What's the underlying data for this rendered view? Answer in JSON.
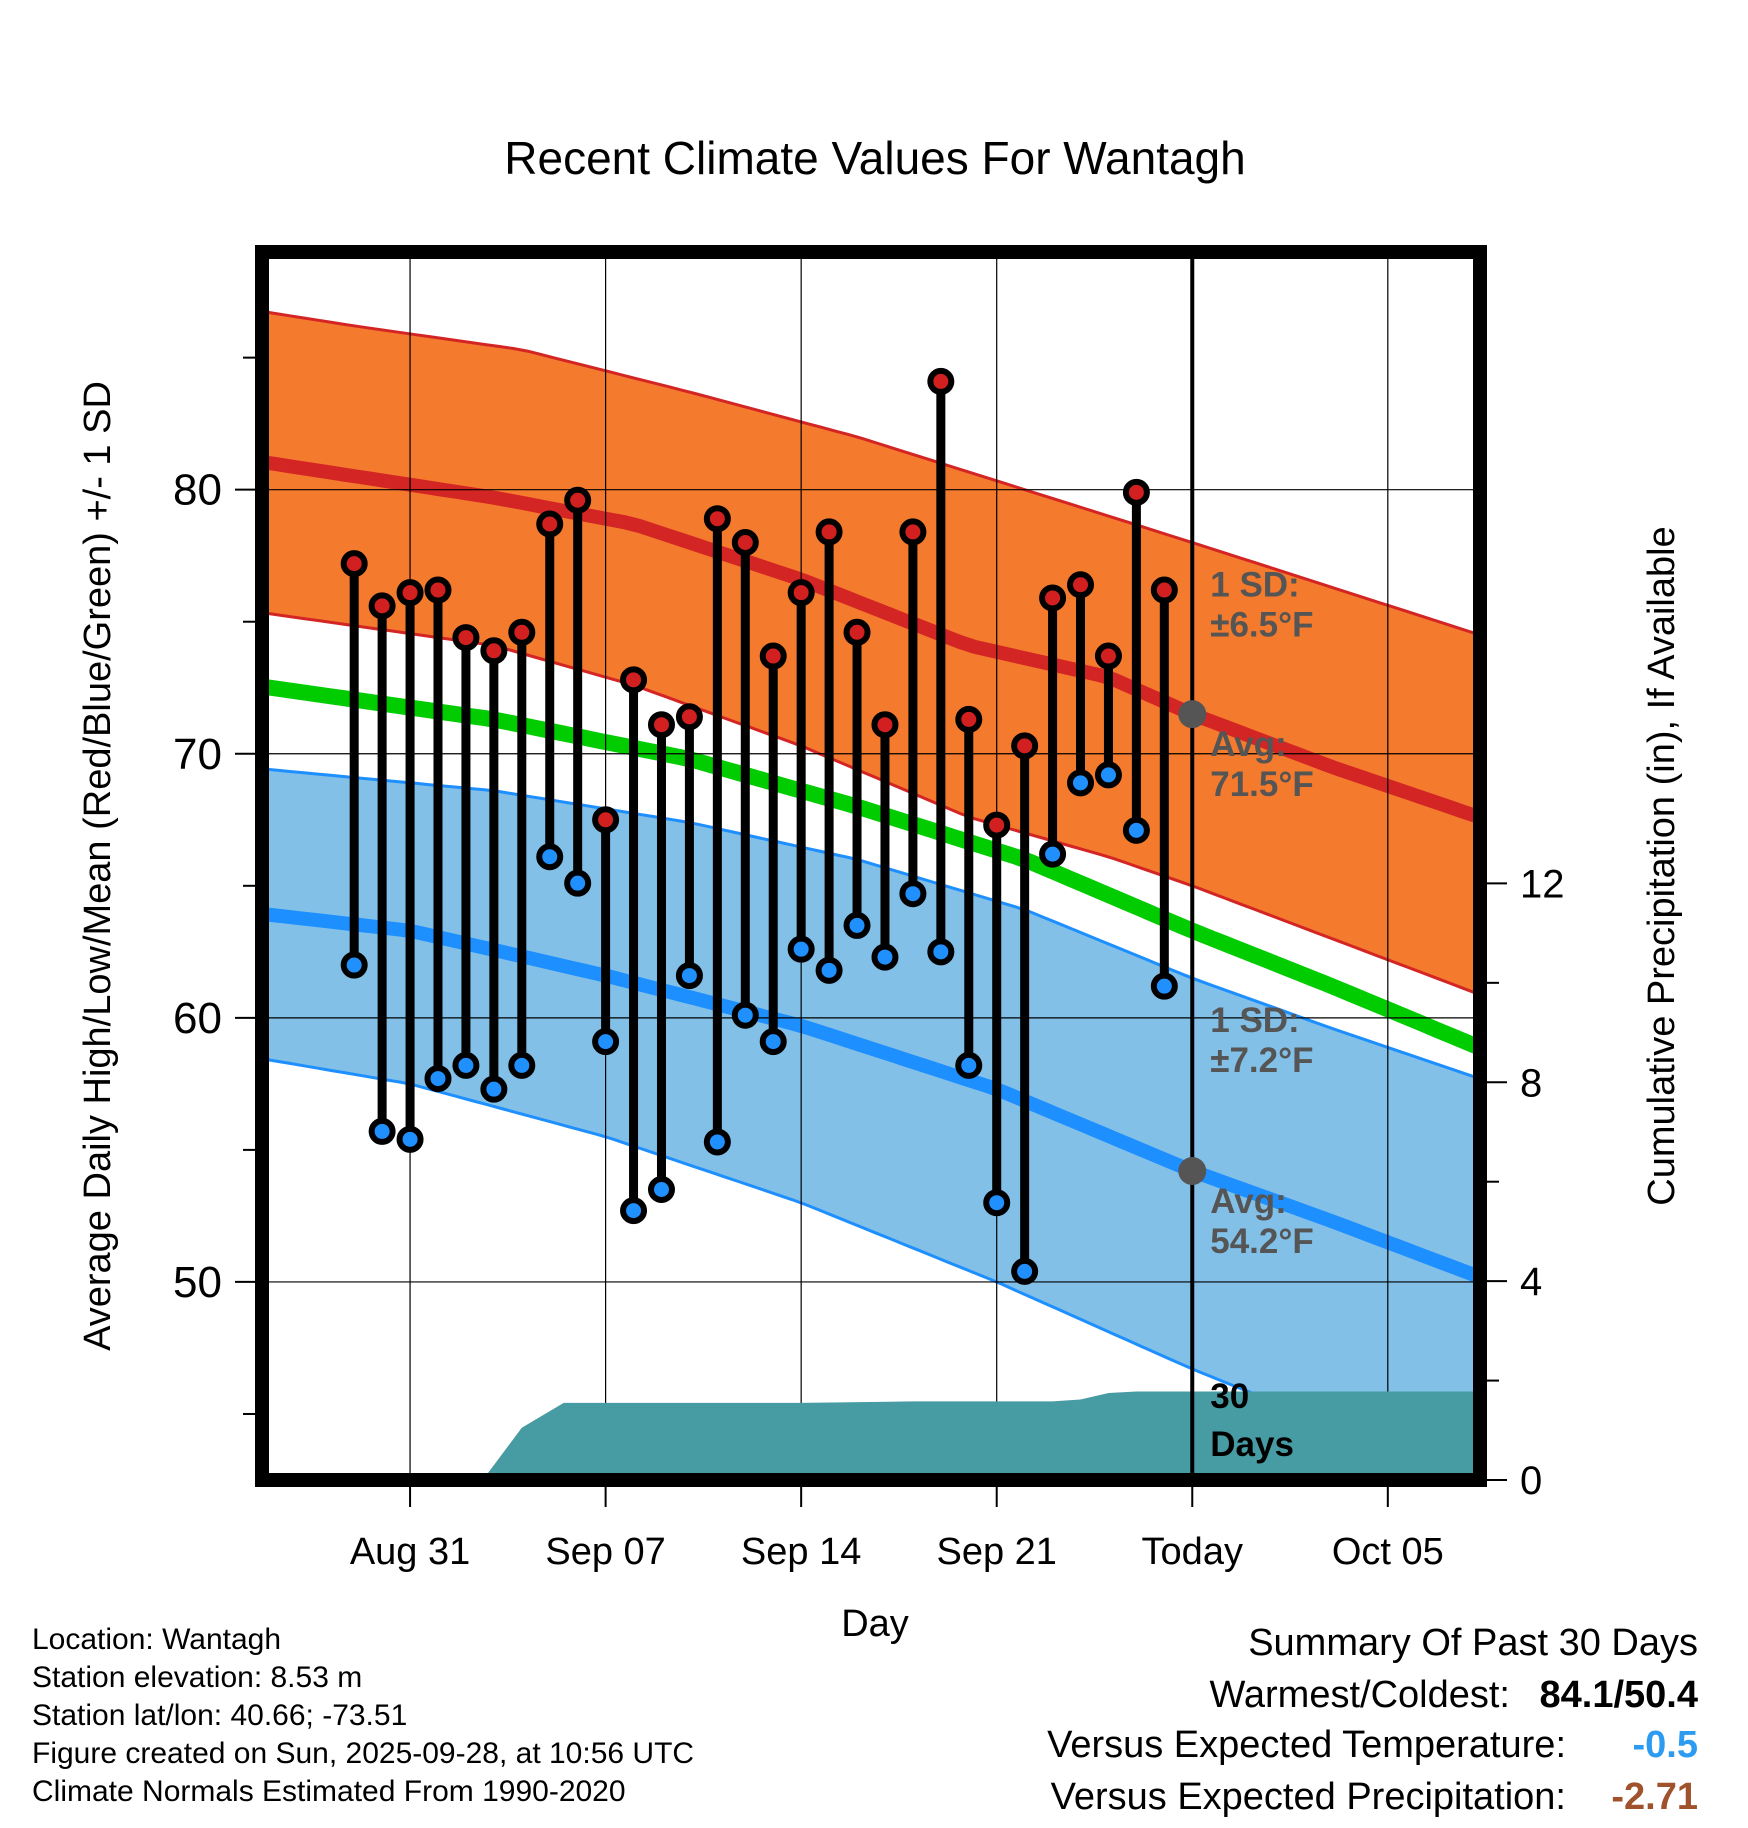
{
  "chart_data": {
    "type": "line",
    "title": "Recent Climate Values For Wantagh",
    "xlabel": "Day",
    "ylabel_left": "Average Daily High/Low/Mean (Red/Blue/Green) +/- 1 SD",
    "ylabel_right": "Cumulative Precipitation (in), If Available",
    "ylim_left": [
      42.5,
      89
    ],
    "ylim_right": [
      0,
      24.7
    ],
    "y_ticks_left": [
      50,
      60,
      70,
      80
    ],
    "y_ticks_right": [
      0,
      4,
      8,
      12
    ],
    "x_range_days": [
      -33.3,
      10.3
    ],
    "x_ticks": [
      {
        "day": -28,
        "label": "Aug 31"
      },
      {
        "day": -21,
        "label": "Sep 07"
      },
      {
        "day": -14,
        "label": "Sep 14"
      },
      {
        "day": -7,
        "label": "Sep 21"
      },
      {
        "day": 0,
        "label": "Today"
      },
      {
        "day": 7,
        "label": "Oct 05"
      }
    ],
    "normals": {
      "high_avg": [
        [
          -33,
          81.0
        ],
        [
          -25,
          79.7
        ],
        [
          -20,
          78.7
        ],
        [
          -14,
          76.6
        ],
        [
          -8,
          74.1
        ],
        [
          -3,
          72.9
        ],
        [
          0,
          71.5
        ],
        [
          5,
          69.5
        ],
        [
          10,
          67.7
        ]
      ],
      "high_upper": [
        [
          -33,
          86.7
        ],
        [
          -30,
          86.2
        ],
        [
          -24,
          85.3
        ],
        [
          -18,
          83.7
        ],
        [
          -12,
          82.0
        ],
        [
          -6,
          80.0
        ],
        [
          0,
          78.0
        ],
        [
          5,
          76.3
        ],
        [
          10,
          74.6
        ]
      ],
      "high_lower": [
        [
          -33,
          75.3
        ],
        [
          -25,
          74.1
        ],
        [
          -20,
          72.6
        ],
        [
          -14,
          70.3
        ],
        [
          -8,
          67.6
        ],
        [
          -3,
          66.1
        ],
        [
          0,
          65.0
        ],
        [
          5,
          63.0
        ],
        [
          10,
          61.0
        ]
      ],
      "mean_avg": [
        [
          -33,
          72.5
        ],
        [
          -25,
          71.3
        ],
        [
          -18,
          69.8
        ],
        [
          -12,
          68.0
        ],
        [
          -6,
          66.0
        ],
        [
          0,
          63.3
        ],
        [
          5,
          61.2
        ],
        [
          10,
          59.0
        ]
      ],
      "low_avg": [
        [
          -33,
          63.9
        ],
        [
          -28,
          63.3
        ],
        [
          -21,
          61.6
        ],
        [
          -14,
          59.7
        ],
        [
          -7,
          57.3
        ],
        [
          0,
          54.2
        ],
        [
          5,
          52.3
        ],
        [
          10,
          50.3
        ]
      ],
      "low_upper": [
        [
          -33,
          69.4
        ],
        [
          -25,
          68.6
        ],
        [
          -18,
          67.4
        ],
        [
          -12,
          66.0
        ],
        [
          -6,
          64.1
        ],
        [
          0,
          61.5
        ],
        [
          5,
          59.6
        ],
        [
          10,
          57.8
        ]
      ],
      "low_lower": [
        [
          -33,
          58.4
        ],
        [
          -28,
          57.5
        ],
        [
          -21,
          55.5
        ],
        [
          -14,
          53.0
        ],
        [
          -7,
          50.0
        ],
        [
          0,
          46.7
        ],
        [
          4,
          45.0
        ],
        [
          10,
          42.5
        ]
      ]
    },
    "observed": [
      {
        "day": -30,
        "high": 77.2,
        "low": 62.0
      },
      {
        "day": -29,
        "high": 75.6,
        "low": 55.7
      },
      {
        "day": -28,
        "high": 76.1,
        "low": 55.4
      },
      {
        "day": -27,
        "high": 76.2,
        "low": 57.7
      },
      {
        "day": -26,
        "high": 74.4,
        "low": 58.2
      },
      {
        "day": -25,
        "high": 73.9,
        "low": 57.3
      },
      {
        "day": -24,
        "high": 74.6,
        "low": 58.2
      },
      {
        "day": -23,
        "high": 78.7,
        "low": 66.1
      },
      {
        "day": -22,
        "high": 79.6,
        "low": 65.1
      },
      {
        "day": -21,
        "high": 67.5,
        "low": 59.1
      },
      {
        "day": -20,
        "high": 72.8,
        "low": 52.7
      },
      {
        "day": -19,
        "high": 71.1,
        "low": 53.5
      },
      {
        "day": -18,
        "high": 71.4,
        "low": 61.6
      },
      {
        "day": -17,
        "high": 78.9,
        "low": 55.3
      },
      {
        "day": -16,
        "high": 78.0,
        "low": 60.1
      },
      {
        "day": -15,
        "high": 73.7,
        "low": 59.1
      },
      {
        "day": -14,
        "high": 76.1,
        "low": 62.6
      },
      {
        "day": -13,
        "high": 78.4,
        "low": 61.8
      },
      {
        "day": -12,
        "high": 74.6,
        "low": 63.5
      },
      {
        "day": -11,
        "high": 71.1,
        "low": 62.3
      },
      {
        "day": -10,
        "high": 78.4,
        "low": 64.7
      },
      {
        "day": -9,
        "high": 84.1,
        "low": 62.5
      },
      {
        "day": -8,
        "high": 71.3,
        "low": 58.2
      },
      {
        "day": -7,
        "high": 67.3,
        "low": 53.0
      },
      {
        "day": -6,
        "high": 70.3,
        "low": 50.4
      },
      {
        "day": -5,
        "high": 75.9,
        "low": 66.2
      },
      {
        "day": -4,
        "high": 76.4,
        "low": 68.9
      },
      {
        "day": -3,
        "high": 73.7,
        "low": 69.2
      },
      {
        "day": -2,
        "high": 79.9,
        "low": 67.1
      },
      {
        "day": -1,
        "high": 76.2,
        "low": 61.2
      }
    ],
    "precip_cumulative": [
      [
        -25.4,
        0
      ],
      [
        -25,
        0.3
      ],
      [
        -24,
        1.05
      ],
      [
        -22.5,
        1.55
      ],
      [
        -21,
        1.55
      ],
      [
        -14,
        1.55
      ],
      [
        -10,
        1.58
      ],
      [
        -5,
        1.58
      ],
      [
        -4,
        1.62
      ],
      [
        -3,
        1.75
      ],
      [
        -2,
        1.78
      ],
      [
        10.3,
        1.78
      ]
    ],
    "annotations": {
      "high_sd_label": "1 SD:",
      "high_sd_value": "±6.5°F",
      "high_avg_label": "Avg:",
      "high_avg_value": "71.5°F",
      "low_sd_label": "1 SD:",
      "low_sd_value": "±7.2°F",
      "low_avg_label": "Avg:",
      "low_avg_value": "54.2°F",
      "window_label_1": "30",
      "window_label_2": "Days"
    },
    "colors": {
      "high_band": "#f47a2d",
      "high_line": "#d42525",
      "mean_line": "#00cc00",
      "low_band": "#82c0e8",
      "low_line": "#1e8fff",
      "precip": "#479ba3",
      "annotation": "#555555",
      "high_point": "#d22020",
      "low_point": "#2090ff"
    }
  },
  "info": {
    "location": "Location: Wantagh",
    "elevation": "Station elevation: 8.53 m",
    "latlon": "Station lat/lon: 40.66; -73.51",
    "created": "Figure created on Sun, 2025-09-28, at 10:56 UTC",
    "normals": "Climate Normals Estimated From 1990-2020"
  },
  "summary": {
    "heading": "Summary Of Past 30 Days",
    "warm_cold_label": "Warmest/Coldest:",
    "warm_cold_value": "84.1/50.4",
    "temp_label": "Versus Expected Temperature:",
    "temp_value": "-0.5",
    "temp_color": "#2d9bf0",
    "precip_label": "Versus Expected Precipitation:",
    "precip_value": "-2.71",
    "precip_color": "#a0522d"
  }
}
